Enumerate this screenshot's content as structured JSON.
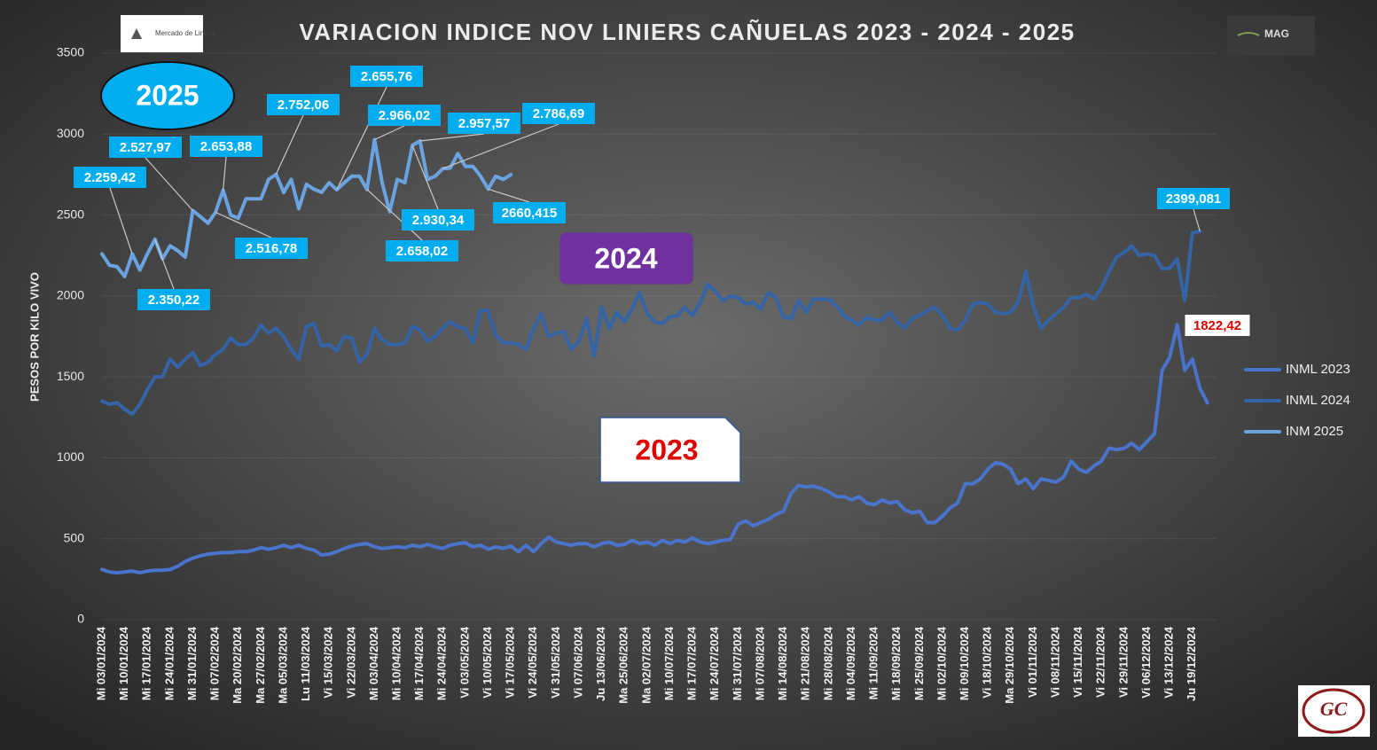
{
  "chart_data": {
    "type": "line",
    "title": "VARIACION INDICE NOV LINIERS CAÑUELAS 2023 - 2024 - 2025",
    "y_label": "PESOS POR KILO VIVO",
    "logos": {
      "left": "Mercado de Liniers",
      "right": "MAG",
      "corner": "GC"
    },
    "annotations": [
      "2025",
      "2024",
      "2023"
    ],
    "ylim": [
      0,
      3500
    ],
    "yticks": [
      0,
      500,
      1000,
      1500,
      2000,
      2500,
      3000,
      3500
    ],
    "grid": true,
    "legend": "right",
    "categories": [
      "Mi 03/01/2024",
      null,
      null,
      "Mi 10/01/2024",
      null,
      null,
      "Mi 17/01/2024",
      null,
      null,
      "Mi 24/01/2024",
      null,
      null,
      "Mi 31/01/2024",
      null,
      null,
      "Mi 07/02/2024",
      null,
      null,
      "Ma 20/02/2024",
      null,
      null,
      "Ma 27/02/2024",
      null,
      null,
      "Ma 05/03/2024",
      null,
      null,
      "Lu 11/03/2024",
      null,
      null,
      "Vi 15/03/2024",
      null,
      null,
      "Vi 22/03/2024",
      null,
      null,
      "Mi 03/04/2024",
      null,
      null,
      "Mi 10/04/2024",
      null,
      null,
      "Mi 17/04/2024",
      null,
      null,
      "Mi 24/04/2024",
      null,
      null,
      "Vi 03/05/2024",
      null,
      null,
      "Vi 10/05/2024",
      null,
      null,
      "Vi 17/05/2024",
      null,
      null,
      "Vi 24/05/2024",
      null,
      null,
      "Vi 31/05/2024",
      null,
      null,
      "Vi 07/06/2024",
      null,
      null,
      "Ju 13/06/2024",
      null,
      null,
      "Ma 25/06/2024",
      null,
      null,
      "Ma 02/07/2024",
      null,
      null,
      "Mi 10/07/2024",
      null,
      null,
      "Mi 17/07/2024",
      null,
      null,
      "Mi 24/07/2024",
      null,
      null,
      "Mi 31/07/2024",
      null,
      null,
      "Mi 07/08/2024",
      null,
      null,
      "Mi 14/08/2024",
      null,
      null,
      "Mi 21/08/2024",
      null,
      null,
      "Mi 28/08/2024",
      null,
      null,
      "Mi 04/09/2024",
      null,
      null,
      "Mi 11/09/2024",
      null,
      null,
      "Mi 18/09/2024",
      null,
      null,
      "Mi 25/09/2024",
      null,
      null,
      "Mi 02/10/2024",
      null,
      null,
      "Mi 09/10/2024",
      null,
      null,
      "Vi 18/10/2024",
      null,
      null,
      "Ma 29/10/2024",
      null,
      null,
      "Vi 01/11/2024",
      null,
      null,
      "Vi 08/11/2024",
      null,
      null,
      "Vi 15/11/2024",
      null,
      null,
      "Vi 22/11/2024",
      null,
      null,
      "Vi 29/11/2024",
      null,
      null,
      "Vi 06/12/2024",
      null,
      null,
      "Vi 13/12/2024",
      null,
      null,
      "Ju 19/12/2024",
      null,
      null
    ],
    "series": [
      {
        "name": "INML 2023",
        "color": "#4a73cc",
        "values": [
          310,
          295,
          290,
          295,
          300,
          290,
          300,
          305,
          305,
          310,
          330,
          360,
          380,
          395,
          405,
          410,
          415,
          415,
          420,
          420,
          430,
          445,
          435,
          445,
          460,
          445,
          460,
          440,
          430,
          400,
          405,
          420,
          440,
          455,
          465,
          470,
          450,
          440,
          445,
          450,
          445,
          460,
          450,
          465,
          450,
          440,
          460,
          470,
          475,
          450,
          460,
          435,
          450,
          440,
          455,
          420,
          460,
          420,
          470,
          510,
          480,
          470,
          460,
          470,
          470,
          450,
          470,
          480,
          460,
          465,
          490,
          470,
          480,
          460,
          490,
          470,
          490,
          480,
          505,
          480,
          470,
          480,
          490,
          495,
          590,
          610,
          580,
          600,
          620,
          650,
          670,
          780,
          830,
          820,
          825,
          810,
          790,
          760,
          760,
          740,
          760,
          720,
          710,
          740,
          720,
          730,
          680,
          660,
          670,
          600,
          600,
          640,
          690,
          720,
          840,
          840,
          870,
          930,
          970,
          960,
          930,
          840,
          870,
          810,
          870,
          860,
          850,
          880,
          980,
          930,
          910,
          950,
          980,
          1060,
          1050,
          1060,
          1090,
          1050,
          1100,
          1150,
          1540,
          1620,
          1822.42,
          1540,
          1610,
          1430,
          1340
        ],
        "value_labels": {
          "142": "1822,42"
        }
      },
      {
        "name": "INML 2024",
        "color": "#3464a6",
        "values": [
          1350,
          1330,
          1340,
          1300,
          1270,
          1330,
          1420,
          1500,
          1500,
          1610,
          1560,
          1610,
          1650,
          1570,
          1590,
          1640,
          1670,
          1740,
          1700,
          1700,
          1740,
          1820,
          1770,
          1800,
          1750,
          1670,
          1610,
          1810,
          1830,
          1690,
          1700,
          1660,
          1750,
          1740,
          1590,
          1640,
          1800,
          1730,
          1700,
          1700,
          1710,
          1810,
          1790,
          1720,
          1750,
          1800,
          1840,
          1810,
          1800,
          1710,
          1910,
          1910,
          1760,
          1710,
          1710,
          1700,
          1670,
          1800,
          1890,
          1750,
          1770,
          1780,
          1670,
          1720,
          1860,
          1630,
          1930,
          1800,
          1900,
          1840,
          1920,
          2020,
          1890,
          1840,
          1830,
          1870,
          1880,
          1930,
          1880,
          1960,
          2070,
          2030,
          1970,
          2000,
          1990,
          1950,
          1960,
          1920,
          2020,
          1990,
          1870,
          1860,
          1970,
          1900,
          1980,
          1980,
          1980,
          1940,
          1880,
          1850,
          1820,
          1870,
          1850,
          1850,
          1900,
          1840,
          1800,
          1860,
          1880,
          1910,
          1930,
          1880,
          1800,
          1790,
          1850,
          1950,
          1960,
          1950,
          1900,
          1890,
          1900,
          1960,
          2150,
          1940,
          1800,
          1850,
          1890,
          1930,
          1990,
          1990,
          2010,
          1980,
          2050,
          2150,
          2240,
          2270,
          2310,
          2250,
          2260,
          2250,
          2170,
          2170,
          2230,
          1970,
          2390,
          2399.081,
          null
        ],
        "value_labels": {
          "145": "2399,081"
        }
      },
      {
        "name": "INM 2025",
        "color": "#6aa3e0",
        "values": [
          2260,
          2190,
          2180,
          2120,
          2259.42,
          2160,
          2260,
          2350.22,
          2230,
          2310,
          2280,
          2240,
          2527.97,
          2490,
          2450,
          2516.78,
          2653.88,
          2500,
          2480,
          2600,
          2600,
          2600,
          2720,
          2752.06,
          2640,
          2720,
          2540,
          2690,
          2660,
          2640,
          2700,
          2655.76,
          2700,
          2740,
          2740,
          2658.02,
          2966.02,
          2700,
          2520,
          2720,
          2700,
          2930.34,
          2957.57,
          2720,
          2740,
          2786.69,
          2790,
          2880,
          2800,
          2800,
          2740,
          2660.415,
          2740,
          2720,
          2750,
          null,
          null,
          null,
          null,
          null,
          null,
          null,
          null,
          null,
          null,
          null,
          null,
          null,
          null,
          null,
          null,
          null,
          null,
          null,
          null,
          null,
          null,
          null,
          null,
          null,
          null,
          null,
          null,
          null,
          null,
          null,
          null,
          null,
          null,
          null,
          null,
          null,
          null,
          null,
          null,
          null,
          null,
          null,
          null,
          null,
          null,
          null,
          null,
          null,
          null,
          null,
          null,
          null,
          null,
          null,
          null,
          null,
          null,
          null,
          null,
          null,
          null,
          null,
          null,
          null,
          null,
          null,
          null,
          null,
          null,
          null,
          null,
          null,
          null,
          null,
          null,
          null,
          null,
          null,
          null,
          null,
          null,
          null,
          null,
          null,
          null,
          null,
          null,
          null,
          null,
          null,
          null
        ],
        "value_labels": {
          "4": "2.259,42",
          "7": "2.350,22",
          "12": "2.527,97",
          "15": "2.516,78",
          "16": "2.653,88",
          "23": "2.752,06",
          "31": "2.655,76",
          "35": "2.658,02",
          "36": "2.966,02",
          "41": "2.930,34",
          "42": "2.957,57",
          "45": "2.786,69",
          "51": "2660,415"
        }
      }
    ]
  }
}
